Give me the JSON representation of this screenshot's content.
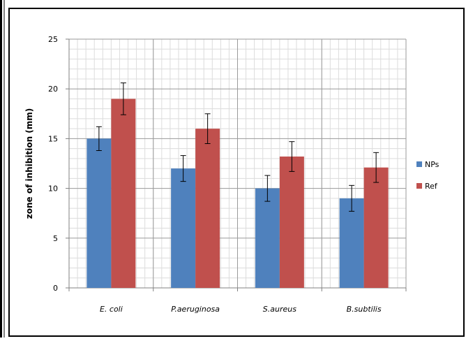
{
  "chart_data": {
    "type": "bar",
    "categories": [
      "E. coli",
      "P.aeruginosa",
      "S.aureus",
      "B.subtilis"
    ],
    "series": [
      {
        "name": "NPs",
        "values": [
          15,
          12,
          10,
          9
        ],
        "errors": [
          1.2,
          1.3,
          1.3,
          1.3
        ],
        "color": "#4f81bd"
      },
      {
        "name": "Ref",
        "values": [
          19,
          16,
          13.2,
          12.1
        ],
        "errors": [
          1.6,
          1.5,
          1.5,
          1.5
        ],
        "color": "#c0504d"
      }
    ],
    "ylabel": "zone of inhibition (mm)",
    "ylim": [
      0,
      25
    ],
    "yticks": [
      0,
      5,
      10,
      15,
      20,
      25
    ],
    "grid": true,
    "legend_position": "right"
  }
}
